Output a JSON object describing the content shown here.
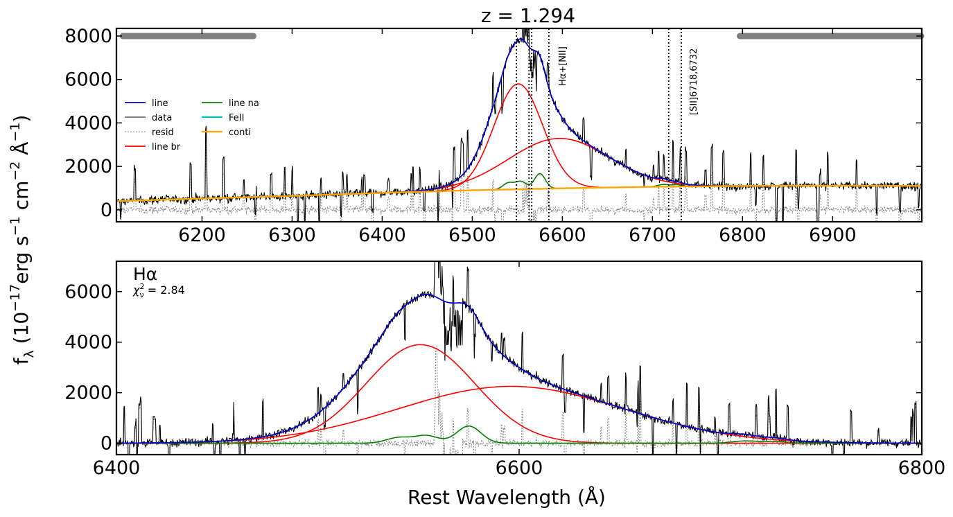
{
  "colors": {
    "line": "#0000cc",
    "data": "#000000",
    "resid": "#888888",
    "line_br": "#ff0000",
    "line_na": "#008000",
    "feii": "#00bfbf",
    "conti": "#ffa500",
    "window_bar": "#808080"
  },
  "ylabel_main": "f",
  "ylabel_sub": "λ",
  "ylabel_rest": " (10",
  "ylabel_sup1": "−17",
  "ylabel_erg": "erg s",
  "ylabel_sup2": "−1",
  "ylabel_cm": " cm",
  "ylabel_sup3": "−2",
  "ylabel_ang": " Å",
  "ylabel_sup4": "−1",
  "ylabel_close": ")",
  "chart_data": [
    {
      "type": "line",
      "title": "z = 1.294",
      "xlabel": "",
      "ylabel": "",
      "xlim": [
        6105,
        6999
      ],
      "ylim": [
        -550,
        8350
      ],
      "xticks": [
        6200,
        6300,
        6400,
        6500,
        6600,
        6700,
        6800,
        6900
      ],
      "yticks": [
        0,
        2000,
        4000,
        6000,
        8000
      ],
      "grid": false,
      "legend_position": "left",
      "legend": [
        "line",
        "data",
        "resid",
        "line br",
        "line na",
        "FeII",
        "conti"
      ],
      "fit_windows": [
        [
          6112,
          6257
        ],
        [
          6797,
          6999
        ]
      ],
      "line_markers": [
        6549,
        6563,
        6566,
        6585,
        6718,
        6732
      ],
      "annotations": [
        {
          "text": "Hα+[NII]",
          "x": 6590
        },
        {
          "text": "[SII]6718,6732",
          "x": 6735
        }
      ],
      "series": [
        {
          "name": "conti",
          "x": [
            6105,
            6200,
            6300,
            6400,
            6500,
            6600,
            6700,
            6800,
            6900,
            6999
          ],
          "values": [
            400,
            520,
            640,
            780,
            900,
            990,
            1060,
            1100,
            1110,
            1100
          ]
        },
        {
          "name": "line br",
          "peak": 4850,
          "center": 6551,
          "sigma": 27
        },
        {
          "name": "line br",
          "peak": 2300,
          "center": 6596,
          "sigma": 56
        },
        {
          "name": "line na",
          "center": [
            6540,
            6554,
            6575,
            6712,
            6727
          ],
          "peak": [
            300,
            350,
            700,
            100,
            80
          ],
          "sigma": 6
        },
        {
          "name": "line",
          "peak": 7100,
          "center": 6560
        },
        {
          "name": "data"
        },
        {
          "name": "resid"
        }
      ]
    },
    {
      "type": "line",
      "title": "Hα",
      "subtitle": "χ²ν = 2.84",
      "subtitle_main": "χ",
      "subtitle_sup": "2",
      "subtitle_sub": "ν",
      "subtitle_val": " = 2.84",
      "xlabel": "Rest Wavelength (Å)",
      "ylabel": "",
      "xlim": [
        6400,
        6800
      ],
      "ylim": [
        -450,
        7200
      ],
      "xticks": [
        6400,
        6600,
        6800
      ],
      "yticks": [
        0,
        2000,
        4000,
        6000
      ],
      "grid": false,
      "series": [
        {
          "name": "line br",
          "peak": 3900,
          "center": 6551,
          "sigma": 27
        },
        {
          "name": "line br",
          "peak": 2250,
          "center": 6596,
          "sigma": 56
        },
        {
          "name": "line na",
          "center": [
            6540,
            6554,
            6575,
            6712,
            6727
          ],
          "peak": [
            220,
            300,
            680,
            90,
            70
          ],
          "sigma": 6
        },
        {
          "name": "line",
          "peak": 6100,
          "center": 6557
        },
        {
          "name": "data"
        },
        {
          "name": "resid"
        }
      ]
    }
  ]
}
